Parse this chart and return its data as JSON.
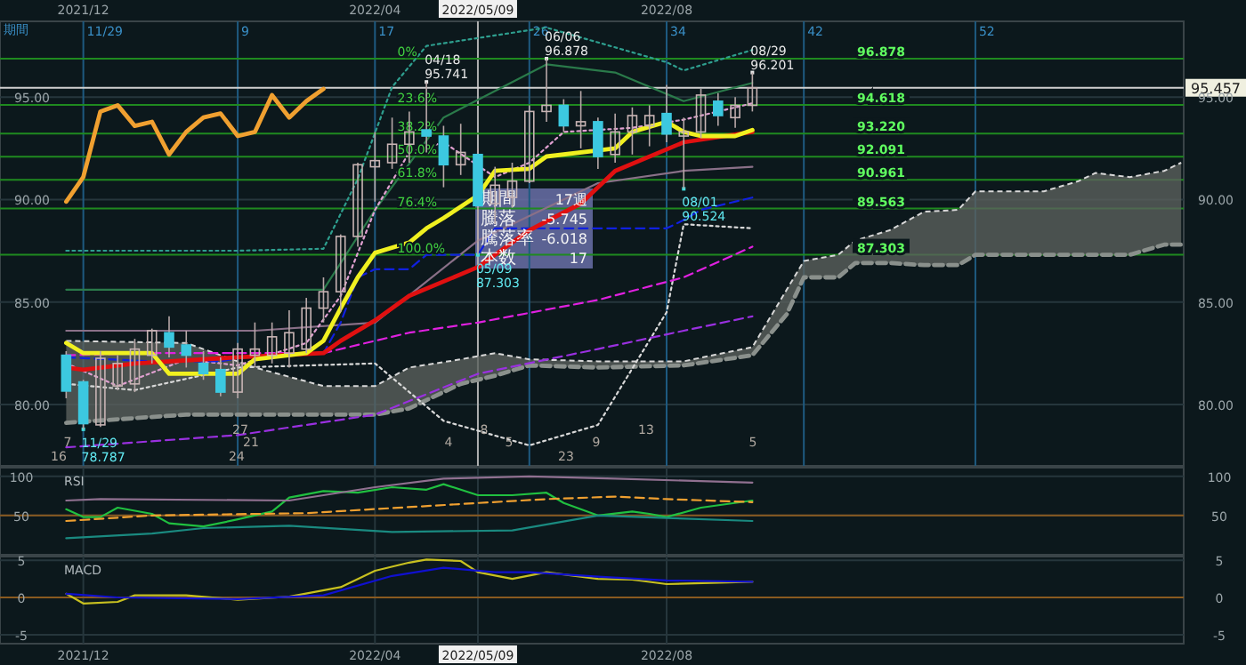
{
  "chart_data": [
    {
      "type": "candlestick",
      "grid": "y",
      "x": [
        "2021-11-22",
        "2021-11-29",
        "2021-12-06",
        "2021-12-13",
        "2021-12-20",
        "2021-12-27",
        "2022-01-03",
        "2022-01-10",
        "2022-01-17",
        "2022-01-24",
        "2022-01-31",
        "2022-02-07",
        "2022-02-14",
        "2022-02-21",
        "2022-02-28",
        "2022-03-07",
        "2022-03-14",
        "2022-03-21",
        "2022-03-28",
        "2022-04-04",
        "2022-04-11",
        "2022-04-18",
        "2022-04-25",
        "2022-05-02",
        "2022-05-09",
        "2022-05-16",
        "2022-05-23",
        "2022-05-30",
        "2022-06-06",
        "2022-06-13",
        "2022-06-20",
        "2022-06-27",
        "2022-07-04",
        "2022-07-11",
        "2022-07-18",
        "2022-07-25",
        "2022-08-01",
        "2022-08-08",
        "2022-08-15",
        "2022-08-22",
        "2022-08-29"
      ],
      "ohlc": [
        [
          82.4,
          82.6,
          80.3,
          80.65
        ],
        [
          81.1,
          81.2,
          78.787,
          79.06
        ],
        [
          79.0,
          82.6,
          78.9,
          82.25
        ],
        [
          80.9,
          82.4,
          80.7,
          82.0
        ],
        [
          81.0,
          83.2,
          80.6,
          82.7
        ],
        [
          82.4,
          83.7,
          82.0,
          83.6
        ],
        [
          83.5,
          84.3,
          82.3,
          82.8
        ],
        [
          82.9,
          83.6,
          81.8,
          82.4
        ],
        [
          82.0,
          82.6,
          81.2,
          81.5
        ],
        [
          81.7,
          82.3,
          80.4,
          80.6
        ],
        [
          80.6,
          83.0,
          80.3,
          82.7
        ],
        [
          82.4,
          84.0,
          81.8,
          82.7
        ],
        [
          82.4,
          84.0,
          82.0,
          83.3
        ],
        [
          82.5,
          84.6,
          81.8,
          83.5
        ],
        [
          82.7,
          85.2,
          82.5,
          84.7
        ],
        [
          84.7,
          86.2,
          84.0,
          85.5
        ],
        [
          85.5,
          88.3,
          84.5,
          88.2
        ],
        [
          88.2,
          91.8,
          87.7,
          91.7
        ],
        [
          91.6,
          93.3,
          89.9,
          91.9
        ],
        [
          91.8,
          94.0,
          91.5,
          92.7
        ],
        [
          92.7,
          94.3,
          91.8,
          93.3
        ],
        [
          93.4,
          95.741,
          92.3,
          93.1
        ],
        [
          93.1,
          93.6,
          90.6,
          91.7
        ],
        [
          91.7,
          93.7,
          91.2,
          92.3
        ],
        [
          92.2,
          92.5,
          87.303,
          89.7
        ],
        [
          89.8,
          91.6,
          88.8,
          90.7
        ],
        [
          90.1,
          91.8,
          89.6,
          90.9
        ],
        [
          90.9,
          94.6,
          90.8,
          94.3
        ],
        [
          94.3,
          96.878,
          93.8,
          94.6
        ],
        [
          94.6,
          94.9,
          93.3,
          93.6
        ],
        [
          93.6,
          95.3,
          92.5,
          93.8
        ],
        [
          93.8,
          94.0,
          91.5,
          92.1
        ],
        [
          92.2,
          94.2,
          91.8,
          93.3
        ],
        [
          93.3,
          94.5,
          92.2,
          94.1
        ],
        [
          93.6,
          94.6,
          92.6,
          94.1
        ],
        [
          94.2,
          95.6,
          92.8,
          93.2
        ],
        [
          93.1,
          94.0,
          90.524,
          93.3
        ],
        [
          93.3,
          95.4,
          93.0,
          95.1
        ],
        [
          94.8,
          95.2,
          93.6,
          94.1
        ],
        [
          94.0,
          95.0,
          93.5,
          94.6
        ],
        [
          94.6,
          96.201,
          94.3,
          95.457
        ]
      ],
      "colors": [
        "#3cc8e0",
        "#3cc8e0",
        "#c8b4b4",
        "#c8b4b4",
        "#c8b4b4",
        "#c8b4b4",
        "#3cc8e0",
        "#3cc8e0",
        "#3cc8e0",
        "#3cc8e0",
        "#c8b4b4",
        "#c8b4b4",
        "#c8b4b4",
        "#c8b4b4",
        "#c8b4b4",
        "#c8b4b4",
        "#c8b4b4",
        "#c8b4b4",
        "#c8b4b4",
        "#c8b4b4",
        "#c8b4b4",
        "#3cc8e0",
        "#3cc8e0",
        "#c8b4b4",
        "#3cc8e0",
        "#c8b4b4",
        "#c8b4b4",
        "#c8b4b4",
        "#c8b4b4",
        "#3cc8e0",
        "#c8b4b4",
        "#3cc8e0",
        "#c8b4b4",
        "#c8b4b4",
        "#c8b4b4",
        "#3cc8e0",
        "#c8b4b4",
        "#c8b4b4",
        "#3cc8e0",
        "#c8b4b4",
        "#c8b4b4"
      ],
      "series": [
        {
          "type": "area",
          "color": "#5a605c",
          "x": [
            "2021-11-22",
            "2022-01-10",
            "2022-02-07",
            "2022-03-07",
            "2022-03-28",
            "2022-04-11",
            "2022-05-02",
            "2022-05-16",
            "2022-05-30",
            "2022-06-27",
            "2022-08-01",
            "2022-08-29",
            "2022-09-12",
            "2022-09-19",
            "2022-10-03",
            "2022-10-10",
            "2022-10-24",
            "2022-11-07",
            "2022-11-21",
            "2022-11-28",
            "2022-12-26",
            "2023-01-09",
            "2023-01-16",
            "2023-01-30",
            "2023-02-13",
            "2023-02-20"
          ],
          "values": [
            83.1,
            83.0,
            81.8,
            80.9,
            80.9,
            81.8,
            82.2,
            82.5,
            82.2,
            82.1,
            82.1,
            82.8,
            85.6,
            87.0,
            87.3,
            88.0,
            88.5,
            89.4,
            89.5,
            90.4,
            90.4,
            90.9,
            91.3,
            91.1,
            91.4,
            91.8
          ]
        },
        {
          "type": "line",
          "color": "#8a908c",
          "line_style": "dashed",
          "x": [
            "2021-11-22",
            "2022-01-10",
            "2022-02-07",
            "2022-03-07",
            "2022-03-28",
            "2022-04-11",
            "2022-05-02",
            "2022-05-16",
            "2022-05-30",
            "2022-06-27",
            "2022-08-01",
            "2022-08-29",
            "2022-09-12",
            "2022-09-19",
            "2022-10-03",
            "2022-10-10",
            "2022-10-24",
            "2022-11-07",
            "2022-11-21",
            "2022-11-28",
            "2022-12-26",
            "2023-01-09",
            "2023-01-16",
            "2023-01-30",
            "2023-02-13",
            "2023-02-20"
          ],
          "values": [
            79.1,
            79.5,
            79.5,
            79.5,
            79.5,
            79.8,
            81.0,
            81.4,
            81.9,
            81.8,
            81.9,
            82.4,
            84.4,
            86.2,
            86.2,
            86.9,
            86.9,
            86.8,
            86.8,
            87.3,
            87.3,
            87.3,
            87.3,
            87.3,
            87.8,
            87.8
          ]
        },
        {
          "type": "line",
          "color": "#2e9e8e",
          "line_style": "dotted",
          "x": [
            "2021-11-22",
            "2022-01-31",
            "2022-03-07",
            "2022-03-21",
            "2022-04-04",
            "2022-04-18",
            "2022-06-06",
            "2022-07-25",
            "2022-08-01",
            "2022-08-29"
          ],
          "values": [
            87.5,
            87.5,
            87.6,
            91.0,
            95.5,
            97.5,
            98.4,
            96.7,
            96.3,
            97.3
          ]
        },
        {
          "type": "line",
          "color": "#2a7a4a",
          "line_style": "solid",
          "x": [
            "2021-11-22",
            "2022-03-07",
            "2022-03-28",
            "2022-04-25",
            "2022-06-06",
            "2022-07-04",
            "2022-08-01",
            "2022-08-29"
          ],
          "values": [
            85.6,
            85.6,
            89.5,
            94.0,
            96.6,
            96.2,
            94.8,
            95.7
          ]
        },
        {
          "type": "line",
          "color": "#8a7088",
          "line_style": "solid",
          "x": [
            "2021-11-22",
            "2022-02-07",
            "2022-03-28",
            "2022-05-09",
            "2022-06-27",
            "2022-08-01",
            "2022-08-29"
          ],
          "values": [
            83.6,
            83.6,
            84.0,
            88.0,
            90.8,
            91.4,
            91.6
          ]
        },
        {
          "type": "line",
          "color": "#d8d8d8",
          "line_style": "dotted",
          "x": [
            "2021-11-22",
            "2021-12-20",
            "2022-01-31",
            "2022-03-28",
            "2022-04-25",
            "2022-05-30",
            "2022-06-27",
            "2022-07-25",
            "2022-08-01",
            "2022-08-29"
          ],
          "values": [
            81.0,
            80.7,
            81.8,
            82.0,
            79.2,
            78.0,
            79.0,
            84.5,
            88.8,
            88.6
          ]
        },
        {
          "type": "line",
          "color": "#e0a0d0",
          "line_style": "dotted",
          "x": [
            "2021-11-22",
            "2021-12-13",
            "2022-01-10",
            "2022-01-31",
            "2022-02-28",
            "2022-03-14",
            "2022-03-28",
            "2022-04-11",
            "2022-04-25",
            "2022-05-16",
            "2022-05-30",
            "2022-06-13",
            "2022-07-11",
            "2022-08-01",
            "2022-08-29"
          ],
          "values": [
            82.0,
            80.9,
            82.2,
            81.9,
            83.0,
            85.3,
            89.5,
            92.3,
            92.8,
            91.1,
            91.8,
            93.3,
            93.5,
            93.9,
            94.7
          ]
        },
        {
          "type": "line",
          "color": "#9a30e0",
          "line_style": "dashed",
          "x": [
            "2021-11-22",
            "2022-01-31",
            "2022-03-28",
            "2022-05-09",
            "2022-06-27",
            "2022-08-01",
            "2022-08-29"
          ],
          "values": [
            77.9,
            78.5,
            79.5,
            81.5,
            82.7,
            83.6,
            84.3
          ]
        },
        {
          "type": "line",
          "color": "#e020e0",
          "line_style": "dashed",
          "x": [
            "2021-11-22",
            "2021-12-27",
            "2022-03-07",
            "2022-04-11",
            "2022-05-09",
            "2022-06-27",
            "2022-08-01",
            "2022-08-29"
          ],
          "values": [
            82.4,
            82.5,
            82.5,
            83.5,
            84.0,
            85.1,
            86.2,
            87.7
          ]
        },
        {
          "type": "line",
          "color": "#1020e0",
          "line_style": "dashed",
          "x": [
            "2021-11-22",
            "2021-12-27",
            "2022-01-24",
            "2022-02-07",
            "2022-03-07",
            "2022-03-14",
            "2022-03-21",
            "2022-03-28",
            "2022-04-11",
            "2022-04-18",
            "2022-05-09",
            "2022-05-16",
            "2022-06-27",
            "2022-07-25",
            "2022-08-01",
            "2022-08-08",
            "2022-08-29"
          ],
          "values": [
            82.3,
            82.1,
            82.1,
            82.4,
            82.5,
            84.0,
            86.2,
            86.6,
            86.6,
            87.3,
            87.3,
            88.6,
            88.6,
            88.6,
            89.0,
            89.5,
            90.1
          ]
        },
        {
          "type": "line",
          "color": "#e01010",
          "line_style": "solid",
          "x": [
            "2021-11-22",
            "2021-11-29",
            "2021-12-20",
            "2022-01-31",
            "2022-03-07",
            "2022-03-14",
            "2022-03-28",
            "2022-04-11",
            "2022-05-09",
            "2022-05-30",
            "2022-06-20",
            "2022-07-04",
            "2022-08-01",
            "2022-08-29"
          ],
          "values": [
            81.8,
            81.7,
            82.0,
            82.3,
            82.5,
            83.1,
            84.1,
            85.3,
            86.7,
            88.5,
            89.8,
            91.4,
            92.8,
            93.3
          ]
        },
        {
          "type": "line",
          "color": "#f0f020",
          "line_style": "solid",
          "x": [
            "2021-11-22",
            "2021-11-29",
            "2021-12-27",
            "2022-01-03",
            "2022-01-31",
            "2022-02-07",
            "2022-02-28",
            "2022-03-07",
            "2022-03-14",
            "2022-03-21",
            "2022-03-28",
            "2022-04-11",
            "2022-04-18",
            "2022-04-25",
            "2022-05-09",
            "2022-05-16",
            "2022-05-30",
            "2022-06-06",
            "2022-07-04",
            "2022-07-11",
            "2022-07-25",
            "2022-08-01",
            "2022-08-08",
            "2022-08-22",
            "2022-08-29"
          ],
          "values": [
            83.0,
            82.5,
            82.5,
            81.5,
            81.5,
            82.2,
            82.5,
            83.1,
            84.7,
            86.2,
            87.4,
            87.9,
            88.6,
            89.1,
            90.2,
            91.4,
            91.5,
            92.1,
            92.5,
            93.3,
            93.8,
            93.3,
            93.1,
            93.1,
            93.4
          ]
        },
        {
          "type": "line",
          "color": "#f0a030",
          "line_style": "solid",
          "x": [
            "2021-11-22",
            "2021-11-29",
            "2021-12-06",
            "2021-12-13",
            "2021-12-20",
            "2021-12-27",
            "2022-01-03",
            "2022-01-10",
            "2022-01-17",
            "2022-01-24",
            "2022-01-31",
            "2022-02-07",
            "2022-02-14",
            "2022-02-21",
            "2022-02-28",
            "2022-03-07"
          ],
          "values": [
            89.9,
            91.1,
            94.3,
            94.6,
            93.6,
            93.8,
            92.2,
            93.3,
            94.0,
            94.2,
            93.1,
            93.3,
            95.1,
            94.0,
            94.8,
            95.4
          ]
        }
      ],
      "ylim": [
        77,
        98.7
      ],
      "yticks": [
        {
          "value": 80,
          "label": "80.00"
        },
        {
          "value": 85,
          "label": "85.00"
        },
        {
          "value": 90,
          "label": "90.00"
        },
        {
          "value": 95,
          "label": "95.00"
        }
      ],
      "y2lim": [
        77,
        98.7
      ],
      "y2ticks": [
        {
          "value": 80,
          "label": "80.00"
        },
        {
          "value": 85,
          "label": "85.00"
        },
        {
          "value": 90,
          "label": "90.00"
        },
        {
          "value": 95,
          "label": "95.00"
        }
      ],
      "xlim": [
        "2021-10-26",
        "2023-02-21"
      ],
      "xticks": [
        {
          "value": "2021-11-29",
          "label": "2021/12"
        },
        {
          "value": "2022-03-28",
          "label": "2022/04"
        },
        {
          "value": "2022-05-09",
          "label": "2022/05/09"
        },
        {
          "value": "2022-07-25",
          "label": "2022/08"
        }
      ],
      "ref_lines": [
        {
          "axis": "x",
          "value": "2021-11-29",
          "label": "11/29",
          "color": "#1e5a80"
        },
        {
          "axis": "x",
          "value": "2022-01-31",
          "label": "9",
          "color": "#1e5a80"
        },
        {
          "axis": "x",
          "value": "2022-03-28",
          "label": "17",
          "color": "#1e5a80"
        },
        {
          "axis": "x",
          "value": "2022-05-30",
          "label": "26",
          "color": "#1e5a80"
        },
        {
          "axis": "x",
          "value": "2022-07-25",
          "label": "34",
          "color": "#1e5a80"
        },
        {
          "axis": "x",
          "value": "2022-09-19",
          "label": "42",
          "color": "#1e5a80"
        },
        {
          "axis": "x",
          "value": "2022-11-28",
          "label": "52",
          "color": "#1e5a80"
        },
        {
          "axis": "x",
          "value": "2022-05-09",
          "label": null,
          "color": "#b0b0b0"
        },
        {
          "axis": "y",
          "value": 96.878,
          "label": "96.878",
          "color": "#1f8a1f"
        },
        {
          "axis": "y",
          "value": 94.618,
          "label": "94.618",
          "color": "#1f8a1f"
        },
        {
          "axis": "y",
          "value": 93.22,
          "label": "93.220",
          "color": "#1f8a1f"
        },
        {
          "axis": "y",
          "value": 92.091,
          "label": "92.091",
          "color": "#1f8a1f"
        },
        {
          "axis": "y",
          "value": 90.961,
          "label": "90.961",
          "color": "#1f8a1f"
        },
        {
          "axis": "y",
          "value": 89.563,
          "label": "89.563",
          "color": "#1f8a1f"
        },
        {
          "axis": "y",
          "value": 87.303,
          "label": "87.303",
          "color": "#1f8a1f"
        },
        {
          "axis": "y2",
          "value": 95.457,
          "label": "95.457",
          "color": "#d0d0d0"
        }
      ],
      "annotations": [
        "期間",
        "期間",
        "17週",
        "騰落",
        "-5.745",
        "騰落率",
        "-6.018",
        "本数",
        "17",
        "27",
        "8",
        "13",
        "7",
        "21",
        "4",
        "5",
        "9",
        "5",
        "16",
        "24",
        "23",
        {
          "text": "04/18\n95.741",
          "x": "2022-04-18",
          "y": 95.741
        },
        {
          "text": "06/06\n96.878",
          "x": "2022-06-06",
          "y": 96.878
        },
        {
          "text": "08/29\n96.201",
          "x": "2022-08-29",
          "y": 96.201
        },
        {
          "text": "05/09\n87.303",
          "x": "2022-05-09",
          "y": 87.303
        },
        {
          "text": "08/01\n90.524",
          "x": "2022-08-01",
          "y": 90.524
        },
        {
          "text": "11/29\n78.787",
          "x": "2021-11-29",
          "y": 78.787
        },
        {
          "text": "0%",
          "x": "2022-04-04",
          "y": 96.878
        },
        {
          "text": "23.6%",
          "x": "2022-04-04",
          "y": 94.618
        },
        {
          "text": "38.2%",
          "x": "2022-04-04",
          "y": 93.22
        },
        {
          "text": "50.0%",
          "x": "2022-04-04",
          "y": 92.091
        },
        {
          "text": "61.8%",
          "x": "2022-04-04",
          "y": 90.961
        },
        {
          "text": "76.4%",
          "x": "2022-04-04",
          "y": 89.563
        },
        {
          "text": "100.0%",
          "x": "2022-04-04",
          "y": 87.303
        }
      ]
    },
    {
      "type": "line",
      "title": "RSI",
      "grid": true,
      "tick_labels": "y",
      "series": [
        {
          "color": "#20c040",
          "x": [
            "2021-11-22",
            "2021-11-29",
            "2021-12-06",
            "2021-12-13",
            "2021-12-27",
            "2022-01-03",
            "2022-01-17",
            "2022-01-31",
            "2022-02-14",
            "2022-02-21",
            "2022-03-07",
            "2022-03-21",
            "2022-04-04",
            "2022-04-18",
            "2022-04-25",
            "2022-05-09",
            "2022-05-23",
            "2022-06-06",
            "2022-06-13",
            "2022-06-27",
            "2022-07-11",
            "2022-07-18",
            "2022-07-25",
            "2022-08-08",
            "2022-08-29"
          ],
          "values": [
            58,
            48,
            48,
            60,
            52,
            40,
            36,
            45,
            55,
            73,
            81,
            79,
            86,
            83,
            90,
            76,
            76,
            79,
            66,
            50,
            55,
            52,
            48,
            60,
            69
          ]
        },
        {
          "color": "#f0a030",
          "line_style": "dashed",
          "x": [
            "2021-11-22",
            "2021-12-27",
            "2022-02-28",
            "2022-05-09",
            "2022-06-06",
            "2022-07-04",
            "2022-07-25",
            "2022-08-29"
          ],
          "values": [
            43,
            50,
            53,
            66,
            71,
            74,
            71,
            67
          ]
        },
        {
          "color": "#907090",
          "x": [
            "2021-11-22",
            "2021-12-06",
            "2022-02-21",
            "2022-03-28",
            "2022-04-25",
            "2022-05-30",
            "2022-07-04",
            "2022-08-29"
          ],
          "values": [
            69,
            71,
            69,
            86,
            97,
            100,
            97,
            92
          ]
        },
        {
          "color": "#1a8a80",
          "x": [
            "2021-11-22",
            "2021-12-27",
            "2022-01-17",
            "2022-02-21",
            "2022-04-04",
            "2022-05-23",
            "2022-06-27",
            "2022-07-25",
            "2022-08-29"
          ],
          "values": [
            21,
            27,
            34,
            37,
            29,
            31,
            50,
            47,
            43
          ]
        }
      ],
      "ylim": [
        0,
        111
      ],
      "yticks": [
        50,
        100
      ],
      "y2lim": [
        0,
        111
      ],
      "y2ticks": [
        50,
        100
      ],
      "xlim": [
        "2021-10-26",
        "2023-02-21"
      ],
      "xticks": [
        {
          "value": "2021-11-29",
          "label": null
        },
        {
          "value": "2022-03-28",
          "label": null
        },
        {
          "value": "2022-05-09",
          "label": null
        },
        {
          "value": "2022-07-25",
          "label": null
        }
      ],
      "ref_lines": [
        {
          "axis": "y",
          "value": 50,
          "label": null,
          "color": "#8a5a20"
        }
      ]
    },
    {
      "type": "line",
      "title": "MACD",
      "grid": true,
      "series": [
        {
          "color": "#c8c020",
          "x": [
            "2021-11-22",
            "2021-11-29",
            "2021-12-13",
            "2021-12-20",
            "2022-01-10",
            "2022-01-31",
            "2022-02-21",
            "2022-03-14",
            "2022-03-28",
            "2022-04-11",
            "2022-04-18",
            "2022-05-02",
            "2022-05-09",
            "2022-05-23",
            "2022-06-06",
            "2022-06-27",
            "2022-07-11",
            "2022-07-25",
            "2022-08-29"
          ],
          "values": [
            0.5,
            -0.8,
            -0.6,
            0.3,
            0.3,
            -0.3,
            0.1,
            1.4,
            3.6,
            4.7,
            5.1,
            4.9,
            3.4,
            2.5,
            3.4,
            2.5,
            2.4,
            1.8,
            2.1
          ]
        },
        {
          "color": "#1010d0",
          "x": [
            "2021-11-22",
            "2021-12-13",
            "2022-01-31",
            "2022-03-07",
            "2022-04-04",
            "2022-04-25",
            "2022-05-16",
            "2022-05-30",
            "2022-06-27",
            "2022-07-25",
            "2022-08-29"
          ],
          "values": [
            0.5,
            0,
            -0.2,
            0.3,
            2.9,
            4.0,
            3.4,
            3.4,
            2.8,
            2.3,
            2.1
          ]
        }
      ],
      "ylim": [
        -6.2,
        5.5
      ],
      "yticks": [
        -5,
        0,
        5
      ],
      "y2lim": [
        -6.2,
        5.5
      ],
      "y2ticks": [
        -5,
        0,
        5
      ],
      "xlim": [
        "2021-10-26",
        "2023-02-21"
      ],
      "xticks": [
        {
          "value": "2021-11-29",
          "label": "2021/12"
        },
        {
          "value": "2022-03-28",
          "label": "2022/04"
        },
        {
          "value": "2022-05-09",
          "label": "2022/05/09"
        },
        {
          "value": "2022-07-25",
          "label": "2022/08"
        }
      ],
      "ref_lines": [
        {
          "axis": "y",
          "value": 0,
          "label": null,
          "color": "#8a5a20"
        }
      ]
    }
  ]
}
